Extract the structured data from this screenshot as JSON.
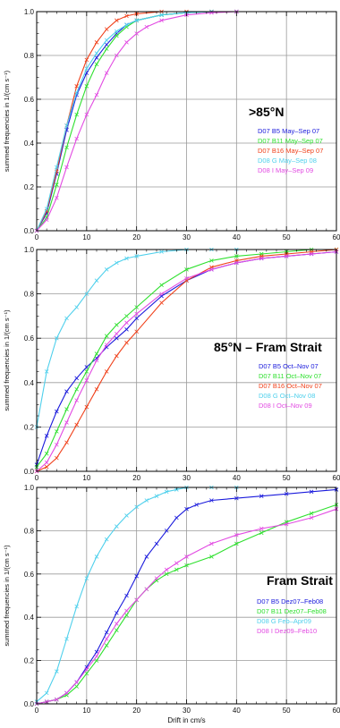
{
  "chart_data": [
    {
      "type": "line",
      "title": ">85°N",
      "xlabel": "",
      "ylabel": "summed frequencies in 1/(cm s⁻¹)",
      "xlim": [
        0,
        60
      ],
      "ylim": [
        0,
        1.0
      ],
      "xticks": [
        "0",
        "10",
        "20",
        "30",
        "40",
        "50",
        "60"
      ],
      "yticks": [
        "0.0",
        "0.2",
        "0.4",
        "0.6",
        "0.8",
        "1.0"
      ],
      "grid": true,
      "legend_placement": "right",
      "series": [
        {
          "name": "D07  B5  May–Sep 07",
          "color": "#1a1adc",
          "x": [
            0,
            2,
            4,
            6,
            8,
            10,
            12,
            14,
            16,
            18,
            20,
            25,
            30,
            35,
            40
          ],
          "y": [
            0,
            0.08,
            0.26,
            0.46,
            0.62,
            0.72,
            0.79,
            0.85,
            0.9,
            0.94,
            0.96,
            0.985,
            0.995,
            1,
            1
          ]
        },
        {
          "name": "D07  B11  May–Sep 07",
          "color": "#2ee02e",
          "x": [
            0,
            2,
            4,
            6,
            8,
            10,
            12,
            14,
            16,
            18,
            20,
            25,
            30,
            35,
            40
          ],
          "y": [
            0,
            0.06,
            0.21,
            0.38,
            0.53,
            0.66,
            0.76,
            0.83,
            0.89,
            0.93,
            0.96,
            0.985,
            0.995,
            1,
            1
          ]
        },
        {
          "name": "D07  B16  May–Sep 07",
          "color": "#f0401a",
          "x": [
            0,
            2,
            4,
            6,
            8,
            10,
            12,
            14,
            16,
            18,
            20,
            25,
            30,
            35,
            40
          ],
          "y": [
            0,
            0.09,
            0.27,
            0.48,
            0.66,
            0.78,
            0.86,
            0.92,
            0.96,
            0.98,
            0.99,
            1,
            1,
            1,
            1
          ]
        },
        {
          "name": "D08  G  May–Sep 08",
          "color": "#4fd0ec",
          "x": [
            0,
            2,
            4,
            6,
            8,
            10,
            12,
            14,
            16,
            18,
            20,
            25,
            30,
            35,
            40
          ],
          "y": [
            0,
            0.1,
            0.29,
            0.48,
            0.63,
            0.74,
            0.81,
            0.87,
            0.91,
            0.94,
            0.96,
            0.985,
            0.995,
            1,
            1
          ]
        },
        {
          "name": "D08  I  May–Sep 09",
          "color": "#e24ae2",
          "x": [
            0,
            2,
            4,
            6,
            8,
            10,
            12,
            14,
            16,
            18,
            20,
            22,
            25,
            30,
            35,
            40
          ],
          "y": [
            0,
            0.05,
            0.15,
            0.29,
            0.42,
            0.53,
            0.62,
            0.72,
            0.8,
            0.86,
            0.9,
            0.93,
            0.96,
            0.985,
            0.995,
            1
          ]
        }
      ]
    },
    {
      "type": "line",
      "title": "85°N – Fram Strait",
      "xlabel": "",
      "ylabel": "summed frequencies in 1/(cm s⁻¹)",
      "xlim": [
        0,
        60
      ],
      "ylim": [
        0,
        1.0
      ],
      "xticks": [
        "0",
        "10",
        "20",
        "30",
        "40",
        "50",
        "60"
      ],
      "yticks": [
        "0.0",
        "0.2",
        "0.4",
        "0.6",
        "0.8",
        "1.0"
      ],
      "grid": true,
      "legend_placement": "right",
      "series": [
        {
          "name": "D07  B5  Oct–Nov 07",
          "color": "#1a1adc",
          "x": [
            0,
            2,
            4,
            6,
            8,
            10,
            12,
            14,
            16,
            18,
            20,
            25,
            30,
            35,
            40,
            45,
            50,
            55,
            60
          ],
          "y": [
            0.03,
            0.16,
            0.27,
            0.36,
            0.42,
            0.47,
            0.51,
            0.56,
            0.6,
            0.64,
            0.69,
            0.79,
            0.86,
            0.91,
            0.94,
            0.96,
            0.97,
            0.98,
            0.99
          ]
        },
        {
          "name": "D07  B11  Oct–Nov 07",
          "color": "#2ee02e",
          "x": [
            0,
            2,
            4,
            6,
            8,
            10,
            12,
            14,
            16,
            18,
            20,
            25,
            30,
            35,
            40,
            45,
            50,
            55,
            60
          ],
          "y": [
            0.02,
            0.08,
            0.18,
            0.28,
            0.37,
            0.45,
            0.53,
            0.61,
            0.66,
            0.7,
            0.74,
            0.84,
            0.91,
            0.95,
            0.97,
            0.98,
            0.99,
            1,
            1
          ]
        },
        {
          "name": "D07  B16  Oct–Nov 07",
          "color": "#f0401a",
          "x": [
            0,
            2,
            4,
            6,
            8,
            10,
            12,
            14,
            16,
            18,
            20,
            25,
            30,
            35,
            40,
            45,
            50,
            55,
            60
          ],
          "y": [
            0,
            0.02,
            0.06,
            0.13,
            0.21,
            0.29,
            0.37,
            0.45,
            0.52,
            0.58,
            0.63,
            0.76,
            0.86,
            0.92,
            0.95,
            0.97,
            0.98,
            0.99,
            1
          ]
        },
        {
          "name": "D08  G  Oct–Nov 08",
          "color": "#4fd0ec",
          "x": [
            0,
            2,
            4,
            6,
            8,
            10,
            12,
            14,
            16,
            18,
            20,
            25,
            30,
            35,
            40
          ],
          "y": [
            0.2,
            0.45,
            0.6,
            0.69,
            0.74,
            0.8,
            0.86,
            0.91,
            0.94,
            0.96,
            0.97,
            0.99,
            1,
            1,
            1
          ]
        },
        {
          "name": "D08  I  Oct–Nov 09",
          "color": "#e24ae2",
          "x": [
            0,
            2,
            4,
            6,
            8,
            10,
            12,
            14,
            16,
            18,
            20,
            25,
            30,
            35,
            40,
            45,
            50,
            55,
            60
          ],
          "y": [
            0,
            0.04,
            0.12,
            0.22,
            0.32,
            0.41,
            0.5,
            0.57,
            0.62,
            0.67,
            0.71,
            0.8,
            0.87,
            0.91,
            0.94,
            0.96,
            0.97,
            0.98,
            0.99
          ]
        }
      ]
    },
    {
      "type": "line",
      "title": "Fram Strait",
      "xlabel": "Drift in cm/s",
      "ylabel": "summed frequencies in 1/(cm s⁻¹)",
      "xlim": [
        0,
        60
      ],
      "ylim": [
        0,
        1.0
      ],
      "xticks": [
        "0",
        "10",
        "20",
        "30",
        "40",
        "50",
        "60"
      ],
      "yticks": [
        "0.0",
        "0.2",
        "0.4",
        "0.6",
        "0.8",
        "1.0"
      ],
      "grid": true,
      "legend_placement": "right",
      "series": [
        {
          "name": "D07  B5  Dez07–Feb08",
          "color": "#1a1adc",
          "x": [
            0,
            2,
            4,
            6,
            8,
            10,
            12,
            14,
            16,
            18,
            20,
            22,
            24,
            26,
            28,
            30,
            32,
            35,
            40,
            45,
            50,
            55,
            60
          ],
          "y": [
            0,
            0.01,
            0.02,
            0.05,
            0.1,
            0.17,
            0.24,
            0.33,
            0.42,
            0.5,
            0.59,
            0.68,
            0.74,
            0.8,
            0.86,
            0.9,
            0.92,
            0.94,
            0.95,
            0.96,
            0.97,
            0.98,
            0.99
          ]
        },
        {
          "name": "D07  B11  Dez07–Feb08",
          "color": "#2ee02e",
          "x": [
            0,
            2,
            4,
            6,
            8,
            10,
            12,
            14,
            16,
            18,
            20,
            22,
            24,
            26,
            28,
            30,
            35,
            40,
            45,
            50,
            55,
            60
          ],
          "y": [
            0,
            0.01,
            0.02,
            0.04,
            0.08,
            0.14,
            0.2,
            0.27,
            0.34,
            0.41,
            0.48,
            0.53,
            0.57,
            0.6,
            0.62,
            0.64,
            0.68,
            0.74,
            0.79,
            0.84,
            0.88,
            0.92
          ]
        },
        {
          "name": "D08  G  Feb–Apr09",
          "color": "#4fd0ec",
          "x": [
            0,
            2,
            4,
            6,
            8,
            10,
            12,
            14,
            16,
            18,
            20,
            22,
            24,
            26,
            28,
            30,
            35,
            40
          ],
          "y": [
            0.01,
            0.05,
            0.15,
            0.3,
            0.45,
            0.58,
            0.68,
            0.76,
            0.82,
            0.87,
            0.91,
            0.94,
            0.96,
            0.98,
            0.99,
            1,
            1,
            1
          ]
        },
        {
          "name": "D08  I  Dez09–Feb10",
          "color": "#e24ae2",
          "x": [
            0,
            2,
            4,
            6,
            8,
            10,
            12,
            14,
            16,
            18,
            20,
            22,
            24,
            26,
            28,
            30,
            35,
            40,
            45,
            50,
            55,
            60
          ],
          "y": [
            0,
            0.01,
            0.02,
            0.05,
            0.1,
            0.16,
            0.22,
            0.3,
            0.37,
            0.43,
            0.48,
            0.53,
            0.58,
            0.62,
            0.65,
            0.68,
            0.74,
            0.78,
            0.81,
            0.83,
            0.86,
            0.9
          ]
        }
      ]
    }
  ]
}
